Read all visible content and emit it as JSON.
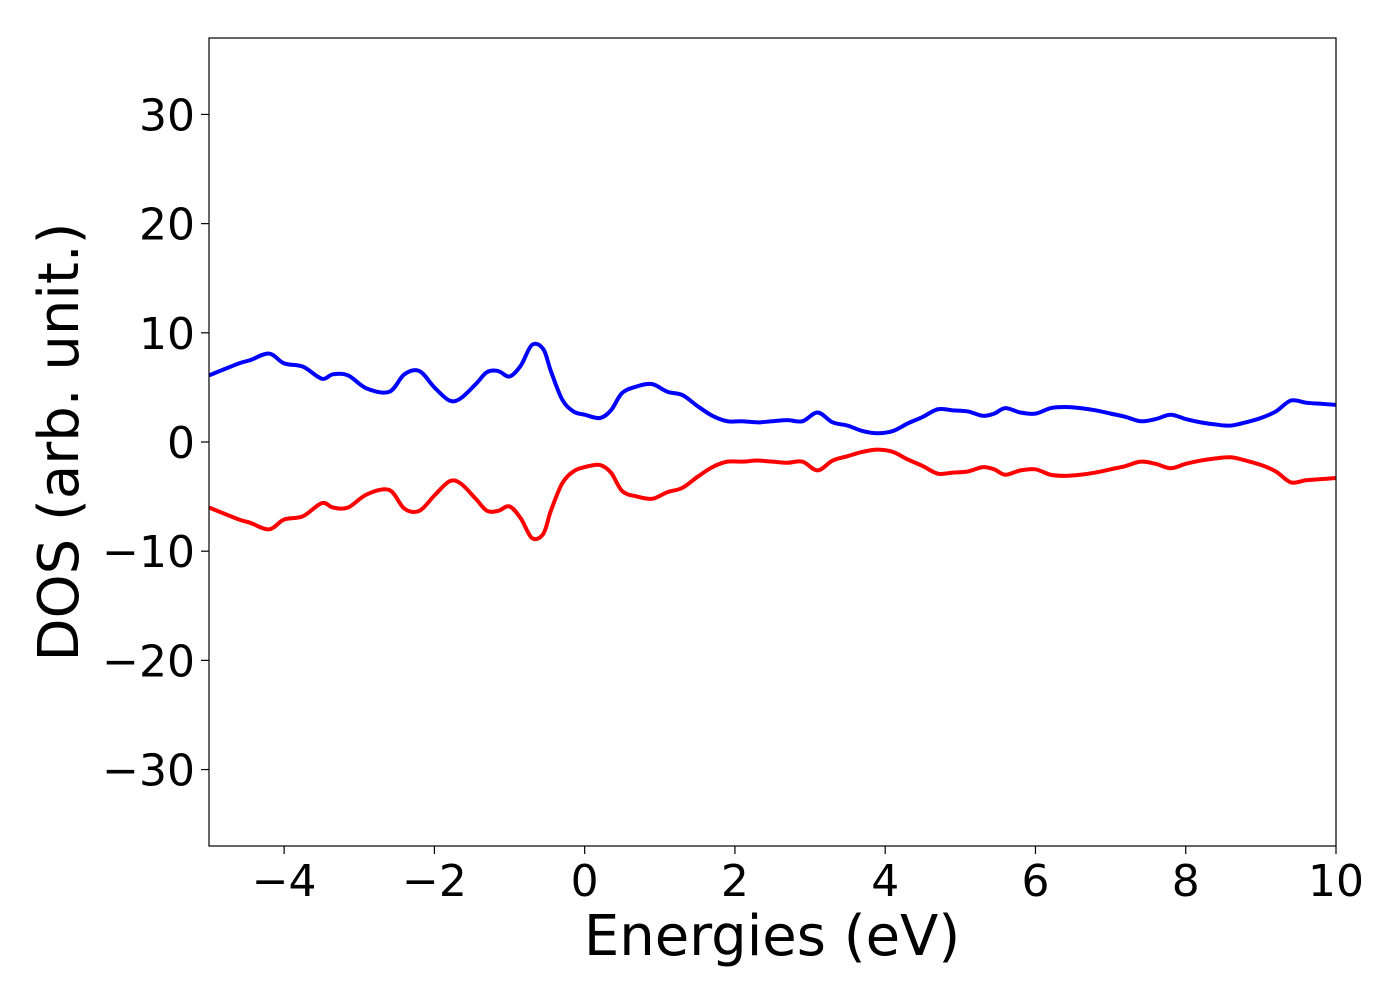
{
  "chart_data": {
    "type": "line",
    "xlabel": "Energies (eV)",
    "ylabel": "DOS (arb. unit.)",
    "xlim": [
      -5,
      10
    ],
    "ylim": [
      -37,
      37
    ],
    "x_ticks": [
      -4,
      -2,
      0,
      2,
      4,
      6,
      8,
      10
    ],
    "x_tick_labels": [
      "−4",
      "−2",
      "0",
      "2",
      "4",
      "6",
      "8",
      "10"
    ],
    "y_ticks": [
      30,
      20,
      10,
      0,
      -10,
      -20,
      -30
    ],
    "y_tick_labels": [
      "30",
      "20",
      "10",
      "0",
      "−10",
      "−20",
      "−30"
    ],
    "grid": false,
    "series": [
      {
        "color": "#0000ff",
        "x": [
          -5.0,
          -4.6,
          -4.45,
          -4.2,
          -4.0,
          -3.75,
          -3.5,
          -3.35,
          -3.15,
          -2.9,
          -2.6,
          -2.4,
          -2.2,
          -2.0,
          -1.8,
          -1.65,
          -1.45,
          -1.3,
          -1.15,
          -1.0,
          -0.85,
          -0.7,
          -0.55,
          -0.45,
          -0.3,
          -0.15,
          0.0,
          0.2,
          0.35,
          0.5,
          0.7,
          0.9,
          1.1,
          1.3,
          1.5,
          1.7,
          1.9,
          2.1,
          2.3,
          2.5,
          2.7,
          2.9,
          3.1,
          3.3,
          3.5,
          3.7,
          3.9,
          4.1,
          4.3,
          4.5,
          4.7,
          4.9,
          5.1,
          5.3,
          5.45,
          5.6,
          5.8,
          6.0,
          6.2,
          6.4,
          6.6,
          6.8,
          7.0,
          7.2,
          7.4,
          7.6,
          7.8,
          8.0,
          8.2,
          8.4,
          8.6,
          8.8,
          9.0,
          9.2,
          9.4,
          9.6,
          9.8,
          10.0
        ],
        "values": [
          6.1,
          7.2,
          7.5,
          8.1,
          7.2,
          6.9,
          5.8,
          6.2,
          6.1,
          4.9,
          4.6,
          6.2,
          6.5,
          5.0,
          3.8,
          4.0,
          5.3,
          6.4,
          6.5,
          6.0,
          7.0,
          8.9,
          8.5,
          6.5,
          3.9,
          2.8,
          2.5,
          2.2,
          2.9,
          4.5,
          5.1,
          5.3,
          4.6,
          4.3,
          3.3,
          2.4,
          1.9,
          1.9,
          1.8,
          1.9,
          2.0,
          1.9,
          2.7,
          1.8,
          1.5,
          1.0,
          0.8,
          1.0,
          1.7,
          2.3,
          3.0,
          2.9,
          2.8,
          2.4,
          2.6,
          3.1,
          2.7,
          2.6,
          3.1,
          3.2,
          3.1,
          2.9,
          2.6,
          2.3,
          1.9,
          2.1,
          2.5,
          2.1,
          1.8,
          1.6,
          1.5,
          1.8,
          2.2,
          2.8,
          3.8,
          3.6,
          3.5,
          3.4
        ]
      },
      {
        "color": "#ff0000",
        "x": [
          -5.0,
          -4.6,
          -4.45,
          -4.2,
          -4.0,
          -3.75,
          -3.5,
          -3.35,
          -3.15,
          -2.9,
          -2.6,
          -2.4,
          -2.2,
          -2.0,
          -1.8,
          -1.65,
          -1.45,
          -1.3,
          -1.15,
          -1.0,
          -0.85,
          -0.7,
          -0.55,
          -0.45,
          -0.3,
          -0.15,
          0.0,
          0.2,
          0.35,
          0.5,
          0.7,
          0.9,
          1.1,
          1.3,
          1.5,
          1.7,
          1.9,
          2.1,
          2.3,
          2.5,
          2.7,
          2.9,
          3.1,
          3.3,
          3.5,
          3.7,
          3.9,
          4.1,
          4.3,
          4.5,
          4.7,
          4.9,
          5.1,
          5.3,
          5.45,
          5.6,
          5.8,
          6.0,
          6.2,
          6.4,
          6.6,
          6.8,
          7.0,
          7.2,
          7.4,
          7.6,
          7.8,
          8.0,
          8.2,
          8.4,
          8.6,
          8.8,
          9.0,
          9.2,
          9.4,
          9.6,
          9.8,
          10.0
        ],
        "values": [
          -6.0,
          -7.1,
          -7.4,
          -8.0,
          -7.1,
          -6.8,
          -5.6,
          -6.0,
          -6.0,
          -4.8,
          -4.4,
          -6.1,
          -6.3,
          -4.9,
          -3.6,
          -3.8,
          -5.2,
          -6.3,
          -6.3,
          -5.9,
          -7.0,
          -8.8,
          -8.4,
          -6.3,
          -3.8,
          -2.7,
          -2.3,
          -2.1,
          -2.8,
          -4.5,
          -5.0,
          -5.2,
          -4.6,
          -4.2,
          -3.2,
          -2.3,
          -1.8,
          -1.8,
          -1.7,
          -1.8,
          -1.9,
          -1.8,
          -2.6,
          -1.7,
          -1.3,
          -0.9,
          -0.7,
          -0.9,
          -1.6,
          -2.2,
          -2.9,
          -2.8,
          -2.7,
          -2.3,
          -2.5,
          -3.0,
          -2.6,
          -2.5,
          -3.0,
          -3.1,
          -3.0,
          -2.8,
          -2.5,
          -2.2,
          -1.8,
          -2.0,
          -2.4,
          -2.0,
          -1.7,
          -1.5,
          -1.4,
          -1.7,
          -2.1,
          -2.7,
          -3.7,
          -3.5,
          -3.4,
          -3.3
        ]
      }
    ]
  }
}
